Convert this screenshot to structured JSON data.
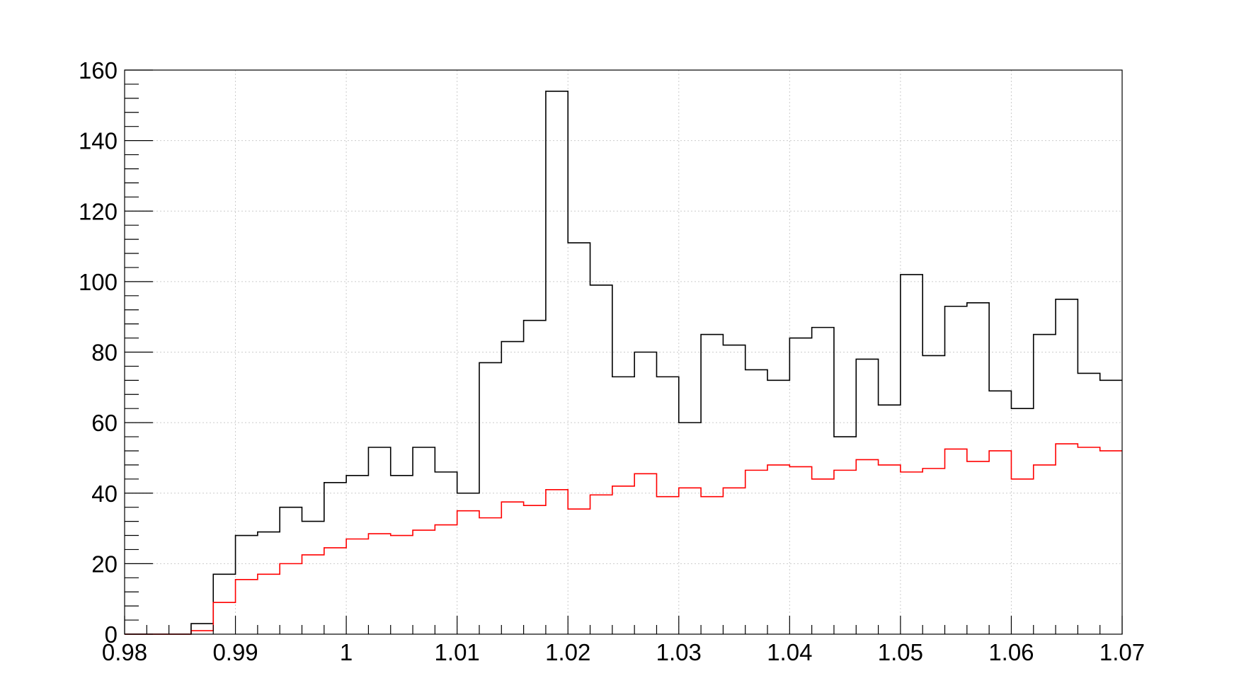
{
  "chart_data": {
    "type": "histogram",
    "title": "",
    "xlabel": "",
    "ylabel": "",
    "xlim": [
      0.98,
      1.07
    ],
    "ylim": [
      0,
      160
    ],
    "grid": true,
    "legend": "none",
    "bin_edges": [
      0.98,
      0.982,
      0.984,
      0.986,
      0.988,
      0.99,
      0.992,
      0.994,
      0.996,
      0.998,
      1.0,
      1.002,
      1.004,
      1.006,
      1.008,
      1.01,
      1.012,
      1.014,
      1.016,
      1.018,
      1.02,
      1.022,
      1.024,
      1.026,
      1.028,
      1.03,
      1.032,
      1.034,
      1.036,
      1.038,
      1.04,
      1.042,
      1.044,
      1.046,
      1.048,
      1.05,
      1.052,
      1.054,
      1.056,
      1.058,
      1.06,
      1.062,
      1.064,
      1.066,
      1.068,
      1.07
    ],
    "x_ticks": [
      "0.98",
      "0.99",
      "1",
      "1.01",
      "1.02",
      "1.03",
      "1.04",
      "1.05",
      "1.06",
      "1.07"
    ],
    "y_ticks": [
      "0",
      "20",
      "40",
      "60",
      "80",
      "100",
      "120",
      "140",
      "160"
    ],
    "series": [
      {
        "color": "#000000",
        "values": [
          0,
          0,
          0,
          3,
          17,
          28,
          29,
          36,
          32,
          43,
          45,
          53,
          45,
          53,
          46,
          40,
          77,
          83,
          89,
          154,
          111,
          99,
          73,
          80,
          73,
          60,
          85,
          82,
          75,
          72,
          84,
          87,
          56,
          78,
          65,
          102,
          79,
          93,
          94,
          69,
          64,
          85,
          95,
          74,
          72
        ]
      },
      {
        "color": "#ff0000",
        "values": [
          0,
          0,
          0,
          1,
          9,
          15.5,
          17,
          20,
          22.5,
          24.5,
          27,
          28.5,
          28,
          29.5,
          31,
          35,
          33,
          37.5,
          36.5,
          41,
          35.5,
          39.5,
          42,
          45.5,
          39,
          41.5,
          39,
          41.5,
          46.5,
          48,
          47.5,
          44,
          46.5,
          49.5,
          48,
          46,
          47,
          52.5,
          49,
          52,
          44,
          48,
          54,
          53,
          52
        ]
      }
    ]
  }
}
